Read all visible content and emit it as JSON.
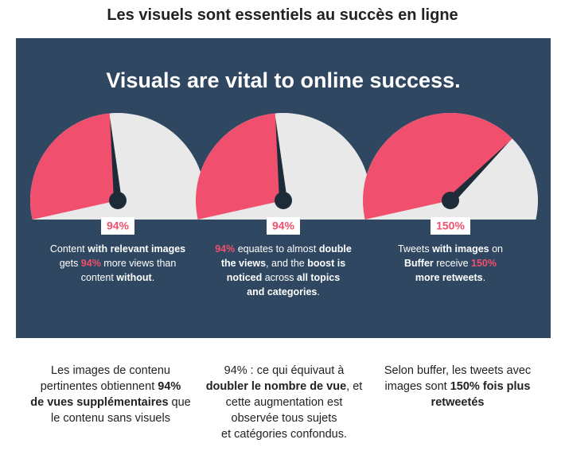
{
  "title": "Les visuels sont essentiels au succès en ligne",
  "infographic": {
    "heading": "Visuals are vital to online success.",
    "scale": [
      0,
      200
    ],
    "gauges": [
      {
        "value": 94,
        "value_label": "94%",
        "caption": [
          [
            "Content ",
            "with relevant images"
          ],
          [
            "gets ",
            "94%",
            " more views than"
          ],
          [
            "content ",
            "without",
            "."
          ]
        ]
      },
      {
        "value": 94,
        "value_label": "94%",
        "caption": [
          [
            "94%",
            " equates to almost ",
            "double"
          ],
          [
            "the views",
            ", and the ",
            "boost is"
          ],
          [
            "noticed",
            " across ",
            "all topics"
          ],
          [
            "and categories",
            "."
          ]
        ]
      },
      {
        "value": 150,
        "value_label": "150%",
        "caption": [
          [
            "Tweets ",
            "with images",
            " on"
          ],
          [
            "Buffer",
            " receive ",
            "150%"
          ],
          [
            "more retweets",
            "."
          ]
        ]
      }
    ]
  },
  "columns": [
    [
      [
        "Les images de contenu"
      ],
      [
        "pertinentes obtiennent ",
        "94%"
      ],
      [
        "de vues supplémentaires",
        " que"
      ],
      [
        "le contenu sans visuels"
      ]
    ],
    [
      [
        "94% : ce qui équivaut à"
      ],
      [
        "doubler le nombre de vue",
        ", et"
      ],
      [
        "cette augmentation est"
      ],
      [
        "observée tous sujets"
      ],
      [
        "et catégories confondus."
      ]
    ],
    [
      [
        "Selon buffer, les tweets avec"
      ],
      [
        "images sont ",
        "150% fois plus"
      ],
      [
        "retweetés"
      ]
    ]
  ]
}
